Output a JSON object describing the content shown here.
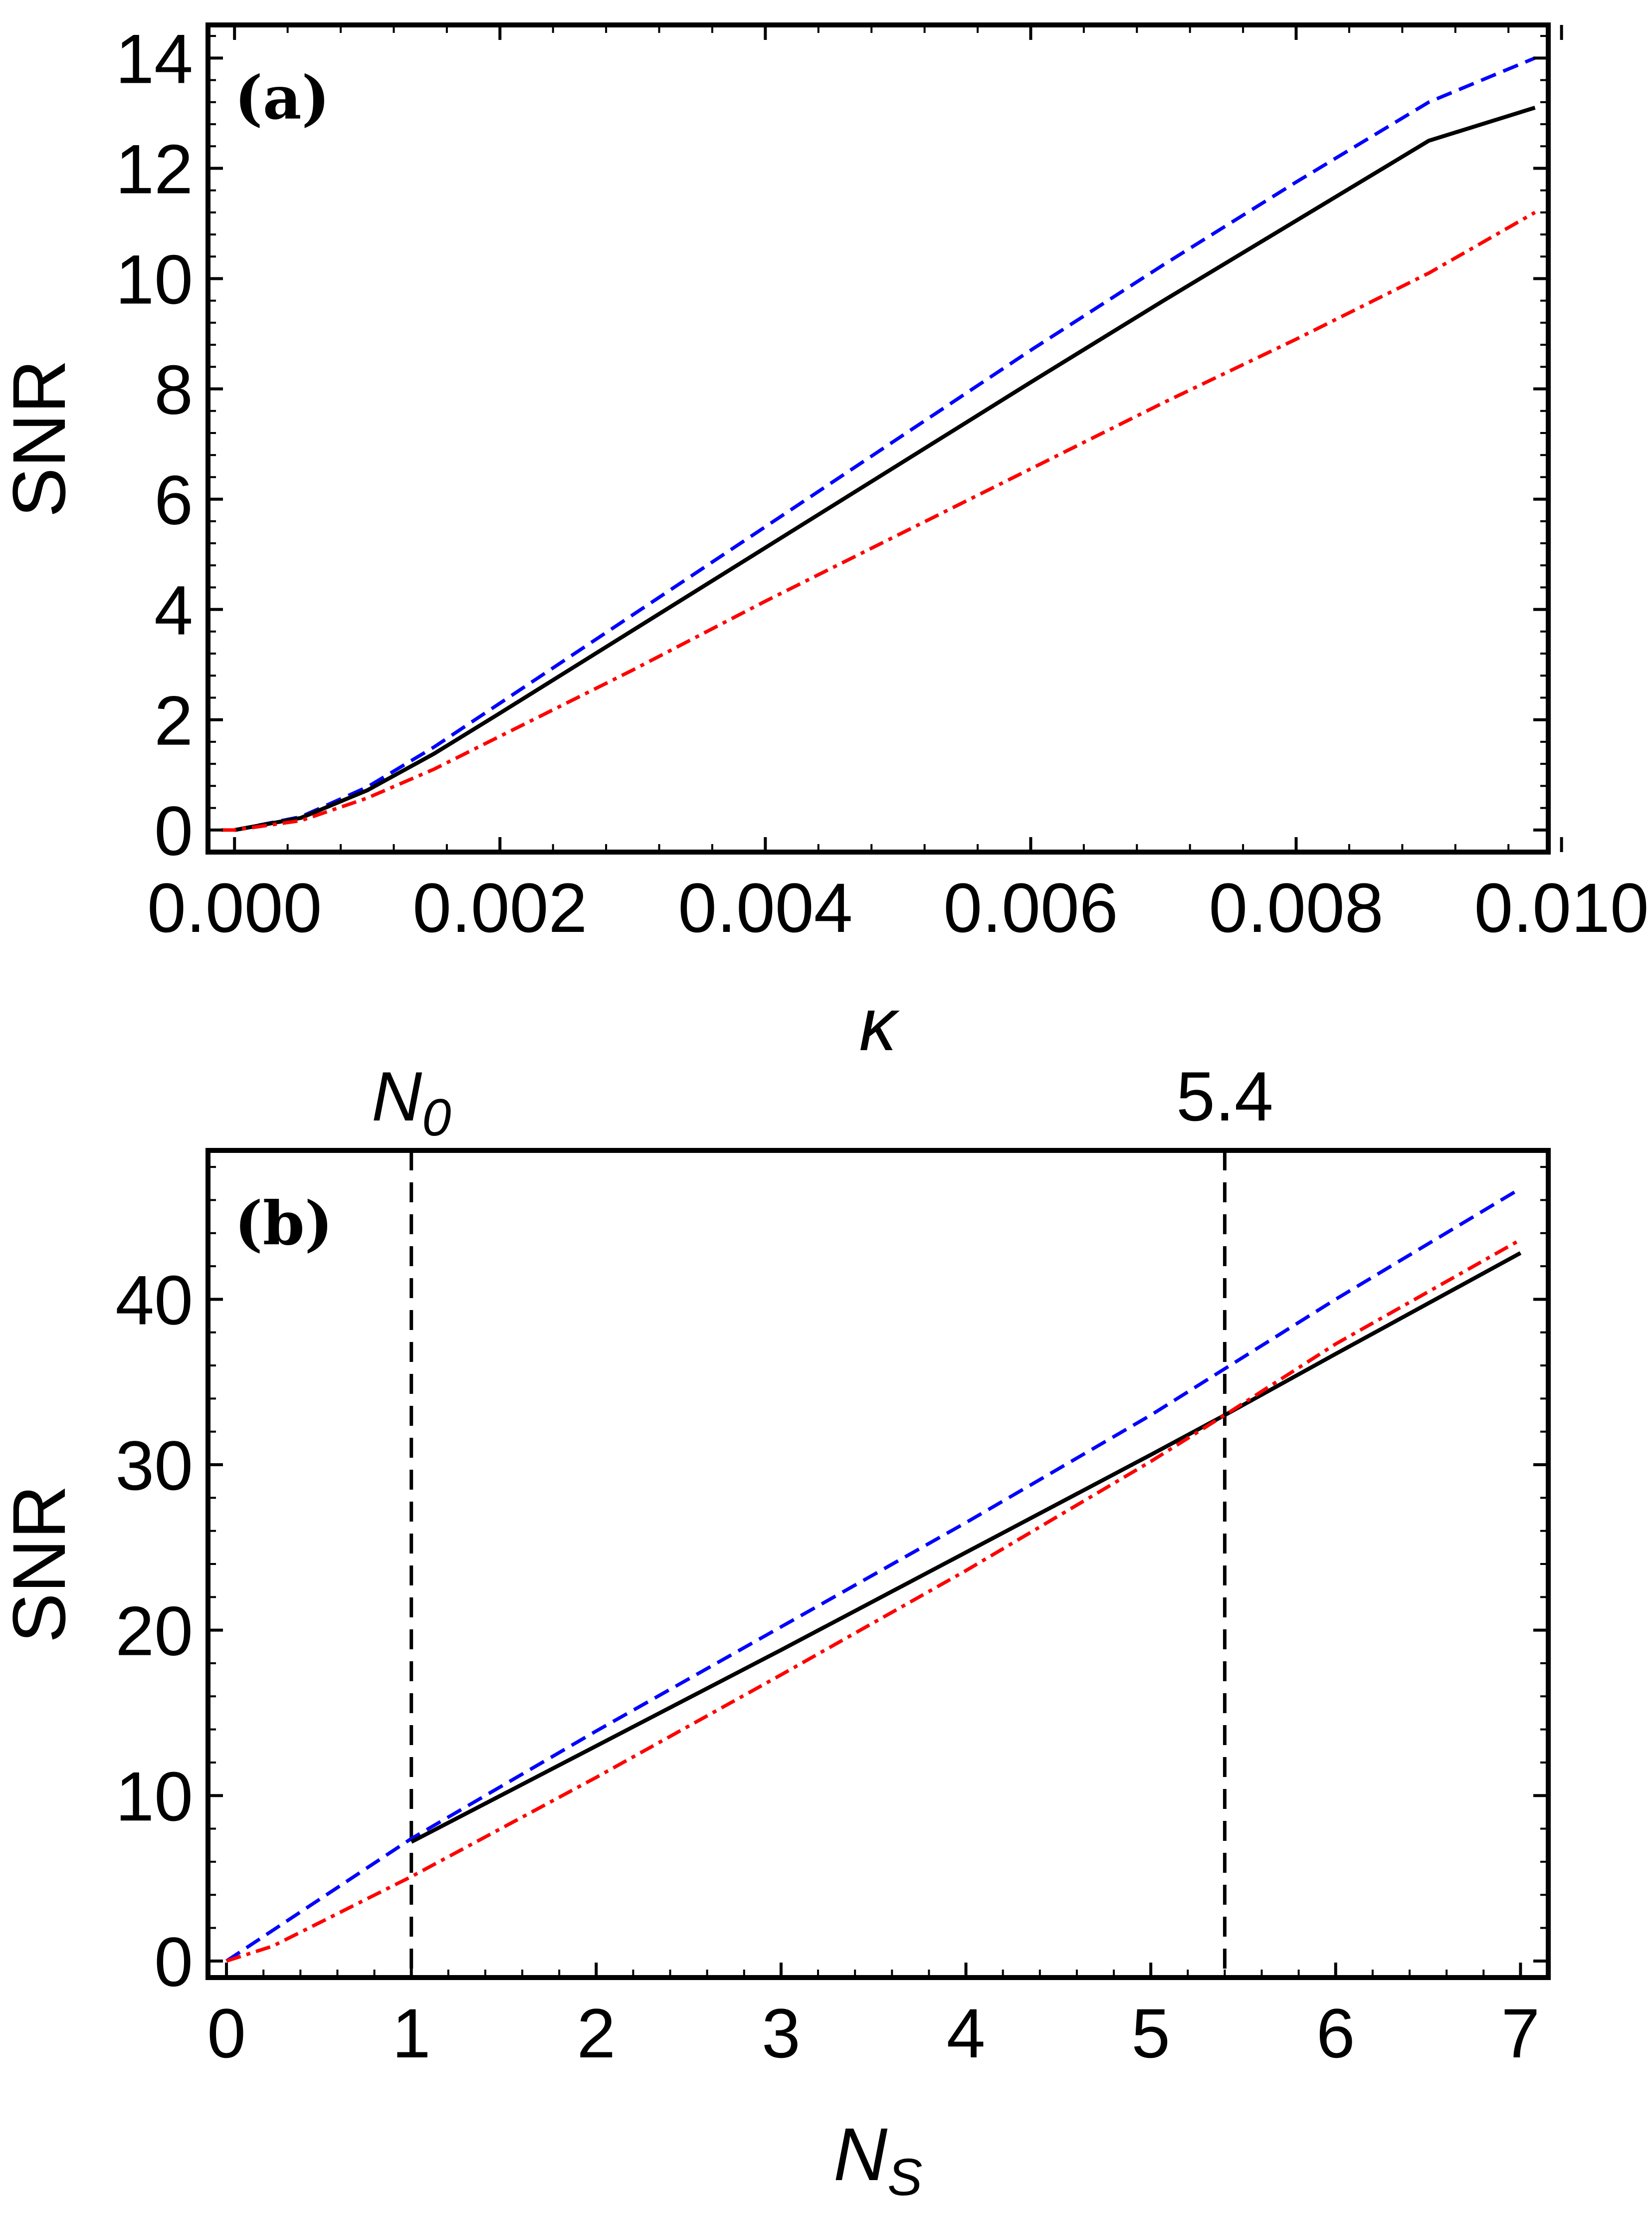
{
  "chart_data": [
    {
      "type": "line",
      "panel_label": "(a)",
      "xlabel": "κ",
      "ylabel": "SNR",
      "xlim": [
        -0.0002,
        0.0099
      ],
      "ylim": [
        -0.4,
        14.6
      ],
      "x_ticks": [
        "0.000",
        "0.002",
        "0.004",
        "0.006",
        "0.008",
        "0.010"
      ],
      "x_tick_values": [
        0.0,
        0.002,
        0.004,
        0.006,
        0.008,
        0.01
      ],
      "y_ticks": [
        "0",
        "2",
        "4",
        "6",
        "8",
        "10",
        "12",
        "14"
      ],
      "y_tick_values": [
        0,
        2,
        4,
        6,
        8,
        10,
        12,
        14
      ],
      "grid": false,
      "series": [
        {
          "style": "dashed",
          "color": "#0000ff",
          "points": [
            [
              0.0,
              0.0
            ],
            [
              0.0005,
              0.24
            ],
            [
              0.001,
              0.78
            ],
            [
              0.0015,
              1.5
            ],
            [
              0.002,
              2.3
            ],
            [
              0.003,
              3.9
            ],
            [
              0.004,
              5.5
            ],
            [
              0.005,
              7.1
            ],
            [
              0.006,
              8.7
            ],
            [
              0.007,
              10.25
            ],
            [
              0.008,
              11.75
            ],
            [
              0.009,
              13.2
            ],
            [
              0.0098,
              14.0
            ]
          ]
        },
        {
          "style": "solid",
          "color": "#000000",
          "points": [
            [
              0.0,
              0.0
            ],
            [
              0.0005,
              0.22
            ],
            [
              0.001,
              0.72
            ],
            [
              0.0015,
              1.38
            ],
            [
              0.002,
              2.12
            ],
            [
              0.003,
              3.62
            ],
            [
              0.004,
              5.12
            ],
            [
              0.005,
              6.62
            ],
            [
              0.006,
              8.12
            ],
            [
              0.007,
              9.6
            ],
            [
              0.008,
              11.05
            ],
            [
              0.009,
              12.5
            ],
            [
              0.0098,
              13.1
            ]
          ]
        },
        {
          "style": "dash-dot",
          "color": "#ff0000",
          "points": [
            [
              -0.0001,
              0.0
            ],
            [
              0.0,
              0.0
            ],
            [
              0.0005,
              0.17
            ],
            [
              0.001,
              0.58
            ],
            [
              0.0015,
              1.1
            ],
            [
              0.002,
              1.7
            ],
            [
              0.003,
              2.9
            ],
            [
              0.004,
              4.15
            ],
            [
              0.005,
              5.35
            ],
            [
              0.006,
              6.55
            ],
            [
              0.007,
              7.75
            ],
            [
              0.008,
              8.9
            ],
            [
              0.009,
              10.1
            ],
            [
              0.0098,
              11.2
            ]
          ]
        }
      ]
    },
    {
      "type": "line",
      "panel_label": "(b)",
      "xlabel": "N",
      "xlabel_sub": "S",
      "ylabel": "SNR",
      "xlim": [
        -0.1,
        7.15
      ],
      "ylim": [
        -1.0,
        49.0
      ],
      "x_ticks": [
        "0",
        "1",
        "2",
        "3",
        "4",
        "5",
        "6",
        "7"
      ],
      "x_tick_values": [
        0,
        1,
        2,
        3,
        4,
        5,
        6,
        7
      ],
      "y_ticks": [
        "0",
        "10",
        "20",
        "30",
        "40"
      ],
      "y_tick_values": [
        0,
        10,
        20,
        30,
        40
      ],
      "top_ticks": [
        {
          "value": 1.0,
          "label": "N",
          "sub": "0"
        },
        {
          "value": 5.4,
          "label": "5.4",
          "sub": ""
        }
      ],
      "vlines": [
        1.0,
        5.4
      ],
      "grid": false,
      "series": [
        {
          "style": "dashed",
          "color": "#0000ff",
          "points": [
            [
              0.0,
              0.0
            ],
            [
              0.5,
              3.7
            ],
            [
              1.0,
              7.4
            ],
            [
              2.0,
              13.9
            ],
            [
              3.0,
              20.2
            ],
            [
              4.0,
              26.5
            ],
            [
              5.0,
              33.0
            ],
            [
              5.4,
              35.8
            ],
            [
              6.0,
              40.0
            ],
            [
              7.0,
              46.7
            ]
          ]
        },
        {
          "style": "solid",
          "color": "#000000",
          "points": [
            [
              1.0,
              7.2
            ],
            [
              2.0,
              13.0
            ],
            [
              3.0,
              18.8
            ],
            [
              4.0,
              24.7
            ],
            [
              5.0,
              30.6
            ],
            [
              5.4,
              33.0
            ],
            [
              6.0,
              36.7
            ],
            [
              7.0,
              42.8
            ]
          ]
        },
        {
          "style": "dash-dot",
          "color": "#ff0000",
          "points": [
            [
              0.0,
              0.0
            ],
            [
              0.25,
              0.9
            ],
            [
              0.5,
              2.3
            ],
            [
              0.75,
              3.7
            ],
            [
              1.0,
              5.1
            ],
            [
              2.0,
              11.1
            ],
            [
              3.0,
              17.3
            ],
            [
              4.0,
              23.6
            ],
            [
              5.0,
              30.2
            ],
            [
              5.4,
              33.0
            ],
            [
              6.0,
              37.3
            ],
            [
              7.0,
              43.6
            ]
          ]
        }
      ]
    }
  ]
}
